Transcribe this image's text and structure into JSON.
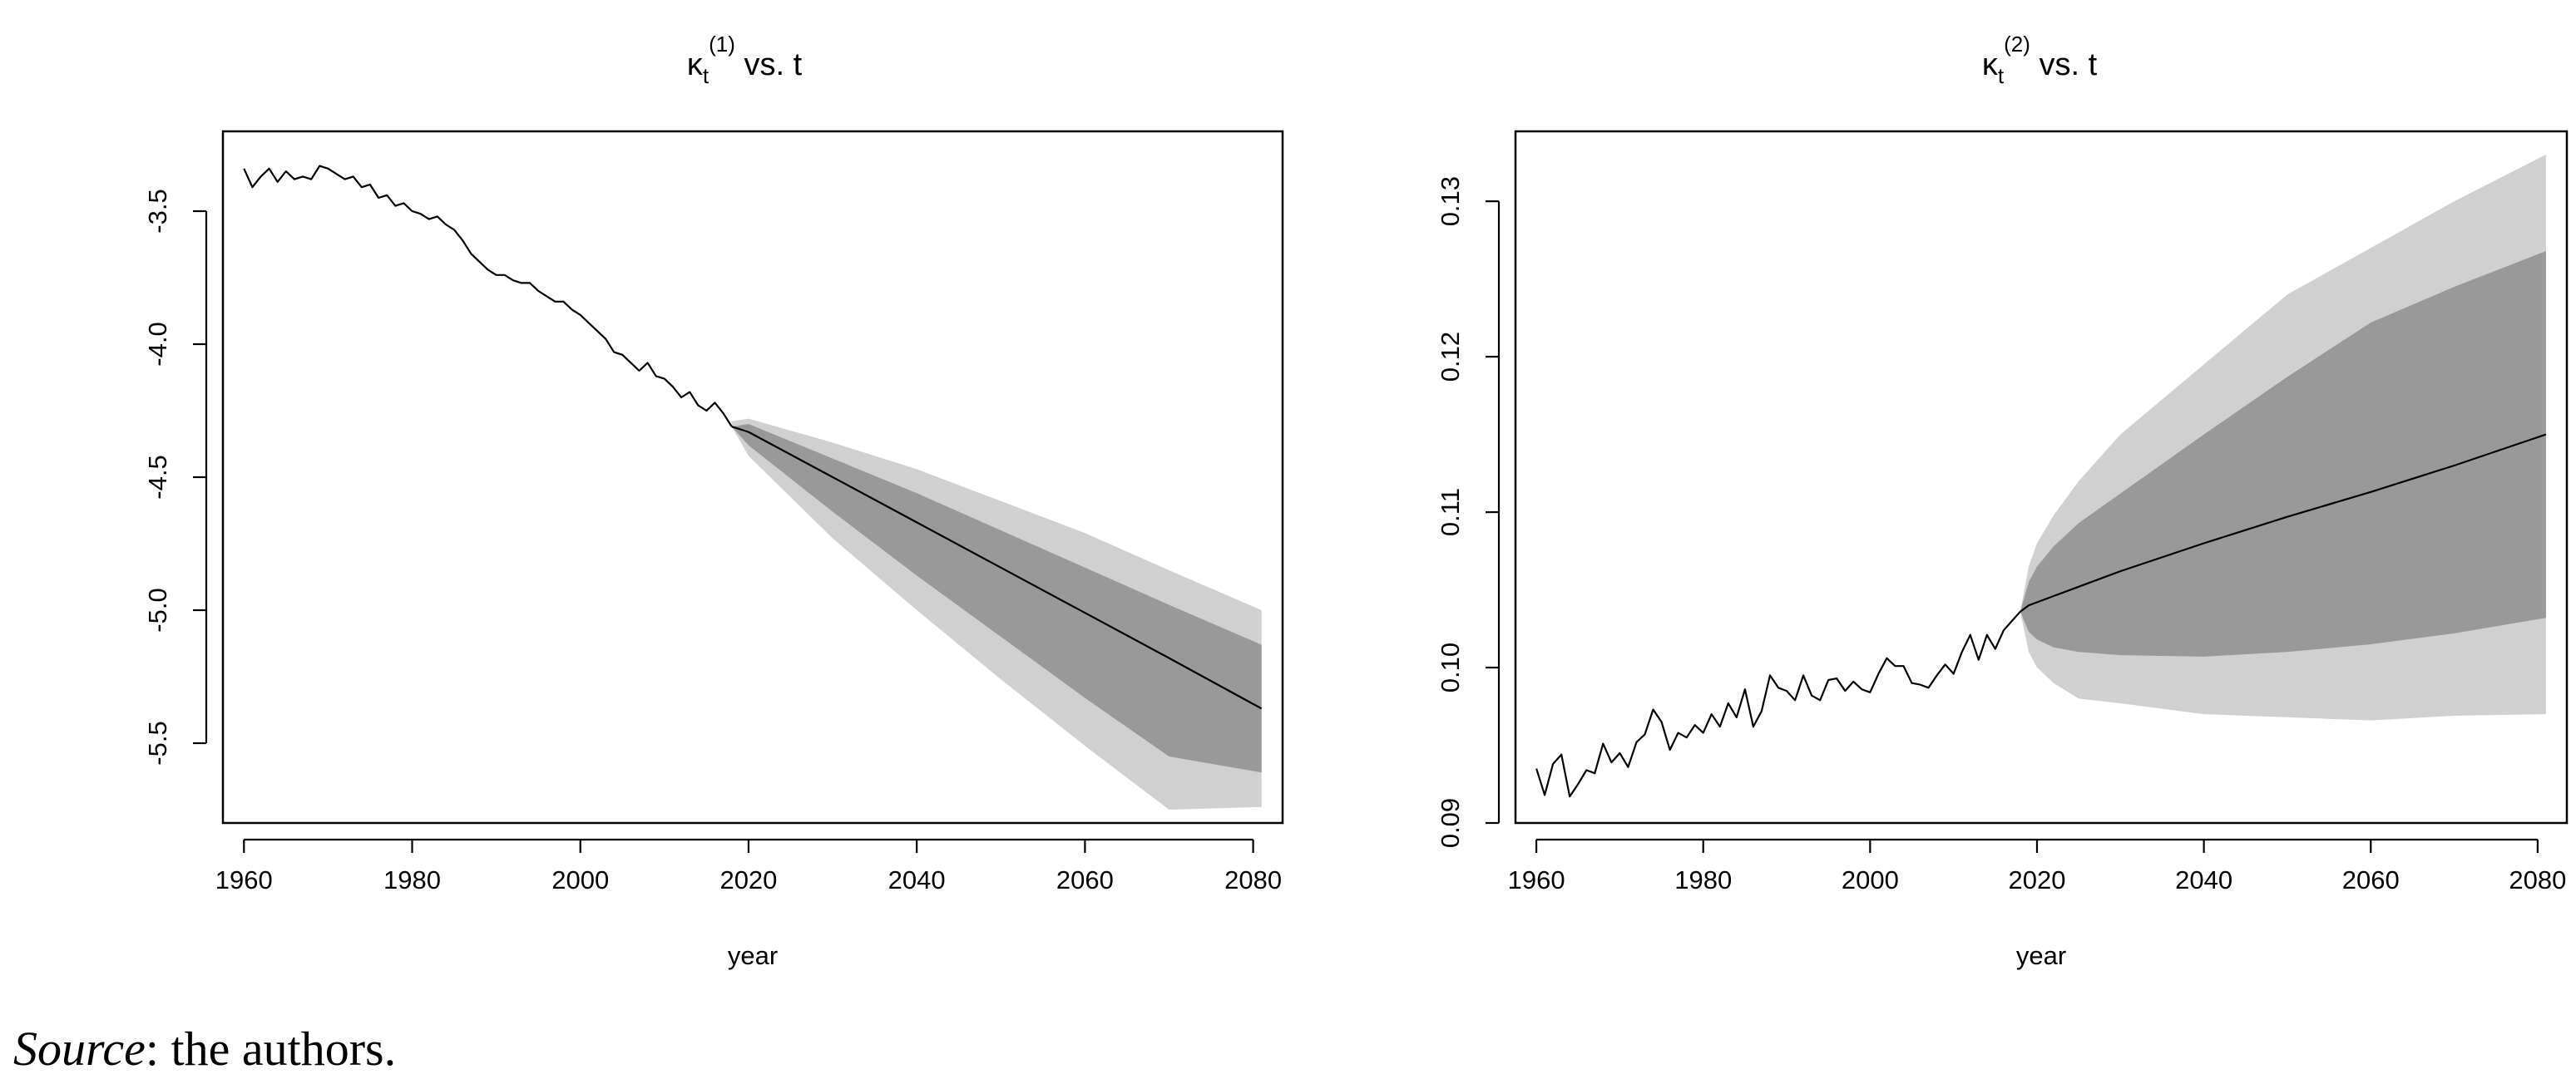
{
  "caption": {
    "source_label": "Source",
    "source_rest": ": the authors."
  },
  "chart_data": [
    {
      "type": "line",
      "title": {
        "main": "κ",
        "sub": "t",
        "sup": "(1)",
        "rest": " vs. t"
      },
      "xlabel": "year",
      "ylabel": "",
      "xlim": [
        1957.5,
        2083.5
      ],
      "ylim": [
        -5.8,
        -3.2
      ],
      "xticks": [
        1960,
        1980,
        2000,
        2020,
        2040,
        2060,
        2080
      ],
      "xtick_labels": [
        "1960",
        "1980",
        "2000",
        "2020",
        "2040",
        "2060",
        "2080"
      ],
      "yticks": [
        -3.5,
        -4.0,
        -4.5,
        -5.0,
        -5.5
      ],
      "ytick_labels": [
        "-3.5",
        "-4.0",
        "-4.5",
        "-5.0",
        "-5.5"
      ],
      "grid": false,
      "colors": {
        "line": "#000000",
        "band_inner": "#999999",
        "band_outer": "#d0d0d0"
      },
      "historical": {
        "x": [
          1960,
          1961,
          1962,
          1963,
          1964,
          1965,
          1966,
          1967,
          1968,
          1969,
          1970,
          1971,
          1972,
          1973,
          1974,
          1975,
          1976,
          1977,
          1978,
          1979,
          1980,
          1981,
          1982,
          1983,
          1984,
          1985,
          1986,
          1987,
          1988,
          1989,
          1990,
          1991,
          1992,
          1993,
          1994,
          1995,
          1996,
          1997,
          1998,
          1999,
          2000,
          2001,
          2002,
          2003,
          2004,
          2005,
          2006,
          2007,
          2008,
          2009,
          2010,
          2011,
          2012,
          2013,
          2014,
          2015,
          2016,
          2017,
          2018
        ],
        "y": [
          -3.34,
          -3.41,
          -3.37,
          -3.34,
          -3.39,
          -3.35,
          -3.38,
          -3.37,
          -3.38,
          -3.33,
          -3.34,
          -3.36,
          -3.38,
          -3.37,
          -3.41,
          -3.4,
          -3.45,
          -3.44,
          -3.48,
          -3.47,
          -3.5,
          -3.51,
          -3.53,
          -3.52,
          -3.55,
          -3.57,
          -3.61,
          -3.66,
          -3.69,
          -3.72,
          -3.74,
          -3.74,
          -3.76,
          -3.77,
          -3.77,
          -3.8,
          -3.82,
          -3.84,
          -3.84,
          -3.87,
          -3.89,
          -3.92,
          -3.95,
          -3.98,
          -4.03,
          -4.04,
          -4.07,
          -4.1,
          -4.07,
          -4.12,
          -4.13,
          -4.16,
          -4.2,
          -4.18,
          -4.23,
          -4.25,
          -4.22,
          -4.26,
          -4.31
        ]
      },
      "forecast": {
        "x": [
          2018,
          2020,
          2030,
          2040,
          2050,
          2060,
          2070,
          2081
        ],
        "central": [
          -4.31,
          -4.33,
          -4.5,
          -4.67,
          -4.84,
          -5.01,
          -5.18,
          -5.37
        ],
        "inner_lower": [
          -4.31,
          -4.38,
          -4.63,
          -4.87,
          -5.1,
          -5.33,
          -5.55,
          -5.61
        ],
        "inner_upper": [
          -4.31,
          -4.3,
          -4.43,
          -4.56,
          -4.7,
          -4.84,
          -4.98,
          -5.13
        ],
        "outer_lower": [
          -4.31,
          -4.42,
          -4.73,
          -5.0,
          -5.26,
          -5.51,
          -5.75,
          -5.74
        ],
        "outer_upper": [
          -4.29,
          -4.28,
          -4.37,
          -4.47,
          -4.59,
          -4.71,
          -4.85,
          -5.0
        ]
      }
    },
    {
      "type": "line",
      "title": {
        "main": "κ",
        "sub": "t",
        "sup": "(2)",
        "rest": " vs. t"
      },
      "xlabel": "year",
      "ylabel": "",
      "xlim": [
        1957.5,
        2083.5
      ],
      "ylim": [
        0.09,
        0.1345
      ],
      "xticks": [
        1960,
        1980,
        2000,
        2020,
        2040,
        2060,
        2080
      ],
      "xtick_labels": [
        "1960",
        "1980",
        "2000",
        "2020",
        "2040",
        "2060",
        "2080"
      ],
      "yticks": [
        0.09,
        0.1,
        0.11,
        0.12,
        0.13
      ],
      "ytick_labels": [
        "0.09",
        "0.10",
        "0.11",
        "0.12",
        "0.13"
      ],
      "grid": false,
      "colors": {
        "line": "#000000",
        "band_inner": "#999999",
        "band_outer": "#d0d0d0"
      },
      "historical": {
        "x": [
          1960,
          1961,
          1962,
          1963,
          1964,
          1965,
          1966,
          1967,
          1968,
          1969,
          1970,
          1971,
          1972,
          1973,
          1974,
          1975,
          1976,
          1977,
          1978,
          1979,
          1980,
          1981,
          1982,
          1983,
          1984,
          1985,
          1986,
          1987,
          1988,
          1989,
          1990,
          1991,
          1992,
          1993,
          1994,
          1995,
          1996,
          1997,
          1998,
          1999,
          2000,
          2001,
          2002,
          2003,
          2004,
          2005,
          2006,
          2007,
          2008,
          2009,
          2010,
          2011,
          2012,
          2013,
          2014,
          2015,
          2016,
          2017,
          2018
        ],
        "y": [
          0.0935,
          0.0918,
          0.0938,
          0.0944,
          0.0917,
          0.0925,
          0.0934,
          0.0932,
          0.0951,
          0.0939,
          0.0945,
          0.0936,
          0.0952,
          0.0957,
          0.0973,
          0.0965,
          0.0947,
          0.0958,
          0.0955,
          0.0963,
          0.0958,
          0.097,
          0.0962,
          0.0977,
          0.0968,
          0.0986,
          0.0962,
          0.0972,
          0.0995,
          0.0987,
          0.0985,
          0.0979,
          0.0995,
          0.0982,
          0.0979,
          0.0992,
          0.0993,
          0.0985,
          0.0991,
          0.0986,
          0.0984,
          0.0996,
          0.1006,
          0.1001,
          0.1001,
          0.099,
          0.0989,
          0.0987,
          0.0995,
          0.1002,
          0.0996,
          0.101,
          0.1021,
          0.1005,
          0.1021,
          0.1012,
          0.1024,
          0.103,
          0.1036
        ]
      },
      "forecast": {
        "x": [
          2018,
          2019,
          2020,
          2022,
          2025,
          2030,
          2040,
          2050,
          2060,
          2070,
          2081
        ],
        "central": [
          0.1036,
          0.104,
          0.1042,
          0.1046,
          0.1052,
          0.1062,
          0.108,
          0.1097,
          0.1113,
          0.113,
          0.115
        ],
        "inner_lower": [
          0.1036,
          0.1023,
          0.1018,
          0.1013,
          0.101,
          0.1008,
          0.1007,
          0.101,
          0.1015,
          0.1022,
          0.1032
        ],
        "inner_upper": [
          0.1036,
          0.1055,
          0.1065,
          0.1078,
          0.1093,
          0.1112,
          0.115,
          0.1187,
          0.1222,
          0.1245,
          0.1268
        ],
        "outer_lower": [
          0.1036,
          0.101,
          0.1,
          0.099,
          0.098,
          0.0977,
          0.097,
          0.0968,
          0.0966,
          0.0969,
          0.097
        ],
        "outer_upper": [
          0.1036,
          0.1065,
          0.108,
          0.1098,
          0.112,
          0.115,
          0.1195,
          0.124,
          0.127,
          0.13,
          0.133
        ]
      }
    }
  ]
}
